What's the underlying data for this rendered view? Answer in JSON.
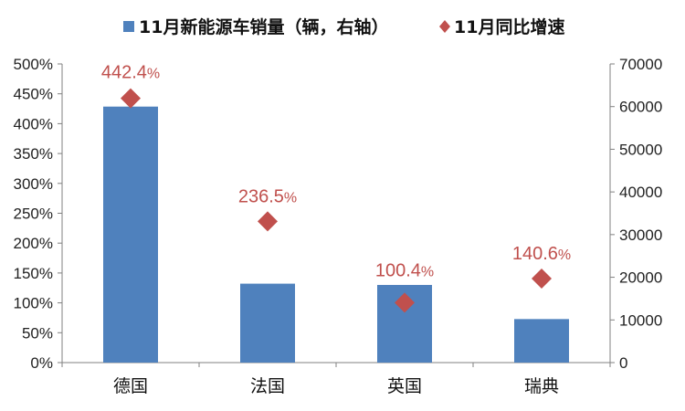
{
  "chart_data": {
    "type": "bar",
    "categories": [
      "德国",
      "法国",
      "英国",
      "瑞典"
    ],
    "series": [
      {
        "name": "11月新能源车销量（辆，右轴）",
        "kind": "bar",
        "axis": "right",
        "color": "#4f81bd",
        "values": [
          60000,
          18500,
          18200,
          10200
        ]
      },
      {
        "name": "11月同比增速",
        "kind": "marker",
        "marker": "diamond",
        "axis": "left",
        "color": "#c0504d",
        "values": [
          442.4,
          236.5,
          100.4,
          140.6
        ],
        "labels": [
          "442.4%",
          "236.5%",
          "100.4%",
          "140.6%"
        ]
      }
    ],
    "y_left": {
      "lim": [
        0,
        500
      ],
      "ticks": [
        "0%",
        "50%",
        "100%",
        "150%",
        "200%",
        "250%",
        "300%",
        "350%",
        "400%",
        "450%",
        "500%"
      ]
    },
    "y_right": {
      "lim": [
        0,
        70000
      ],
      "ticks": [
        "0",
        "10000",
        "20000",
        "30000",
        "40000",
        "50000",
        "60000",
        "70000"
      ]
    },
    "grid": false,
    "legend_position": "top"
  }
}
